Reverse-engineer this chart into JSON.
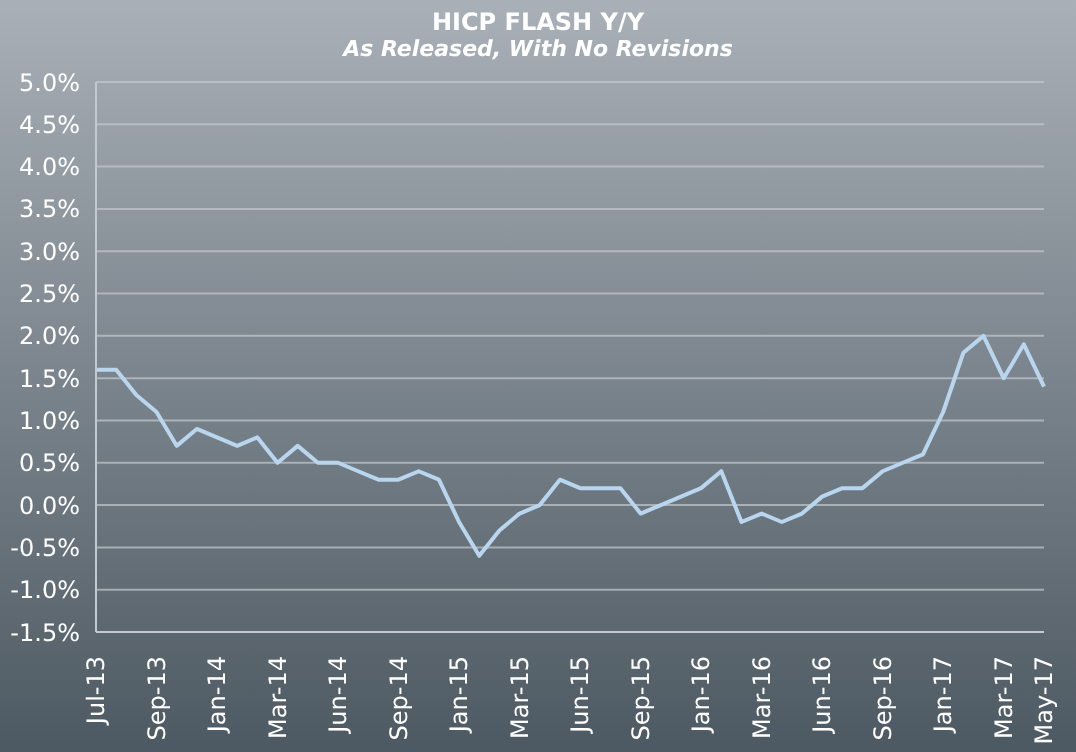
{
  "chart_data": {
    "type": "line",
    "title": "HICP FLASH Y/Y",
    "subtitle": "As Released, With No Revisions",
    "categories": [
      "Jul-13",
      null,
      null,
      "Sep-13",
      null,
      null,
      "Jan-14",
      null,
      null,
      "Mar-14",
      null,
      null,
      "Jun-14",
      null,
      null,
      "Sep-14",
      null,
      null,
      "Jan-15",
      null,
      null,
      "Mar-15",
      null,
      null,
      "Jun-15",
      null,
      null,
      "Sep-15",
      null,
      null,
      "Jan-16",
      null,
      null,
      "Mar-16",
      null,
      null,
      "Jun-16",
      null,
      null,
      "Sep-16",
      null,
      null,
      "Jan-17",
      null,
      null,
      "Mar-17",
      null,
      "May-17"
    ],
    "series": [
      {
        "color": "#b9d6ee",
        "values": [
          1.6,
          1.6,
          1.3,
          1.1,
          0.7,
          0.9,
          0.8,
          0.7,
          0.8,
          0.5,
          0.7,
          0.5,
          0.5,
          0.4,
          0.3,
          0.3,
          0.4,
          0.3,
          -0.2,
          -0.6,
          -0.3,
          -0.1,
          0.0,
          0.3,
          0.2,
          0.2,
          0.2,
          -0.1,
          0.0,
          0.1,
          0.2,
          0.4,
          -0.2,
          -0.1,
          -0.2,
          -0.1,
          0.1,
          0.2,
          0.2,
          0.4,
          0.5,
          0.6,
          1.1,
          1.8,
          2.0,
          1.5,
          1.9,
          1.4
        ]
      }
    ],
    "ylim": [
      -1.5,
      5
    ],
    "yticks": [
      {
        "value": -1.5,
        "label": "-1.5%"
      },
      {
        "value": -1,
        "label": "-1.0%"
      },
      {
        "value": -0.5,
        "label": "-0.5%"
      },
      {
        "value": 0,
        "label": "0.0%"
      },
      {
        "value": 0.5,
        "label": "0.5%"
      },
      {
        "value": 1,
        "label": "1.0%"
      },
      {
        "value": 1.5,
        "label": "1.5%"
      },
      {
        "value": 2,
        "label": "2.0%"
      },
      {
        "value": 2.5,
        "label": "2.5%"
      },
      {
        "value": 3,
        "label": "3.0%"
      },
      {
        "value": 3.5,
        "label": "3.5%"
      },
      {
        "value": 4,
        "label": "4.0%"
      },
      {
        "value": 4.5,
        "label": "4.5%"
      },
      {
        "value": 5,
        "label": "5.0%"
      }
    ],
    "grid": "y",
    "legend": false,
    "marker": "none",
    "line_style": "solid"
  }
}
